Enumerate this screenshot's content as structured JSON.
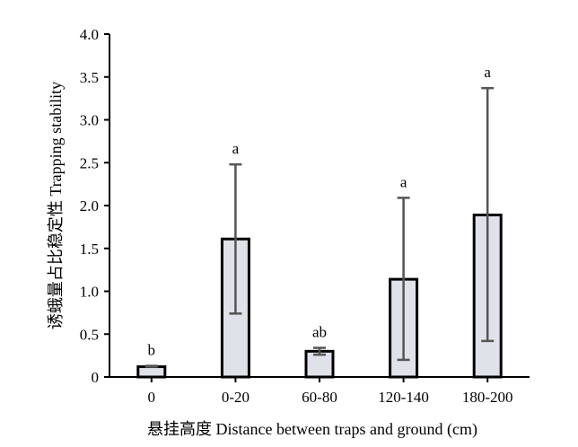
{
  "chart_data": {
    "type": "bar",
    "title": "",
    "xlabel": "悬挂高度 Distance between traps and ground (cm)",
    "ylabel": "诱蛾量占比稳定性 Trapping stability",
    "categories": [
      "0",
      "0-20",
      "60-80",
      "120-140",
      "180-200"
    ],
    "values": [
      0.12,
      1.61,
      0.3,
      1.14,
      1.89
    ],
    "error_upper": [
      0.13,
      2.48,
      0.34,
      2.09,
      3.37
    ],
    "error_lower": [
      0.12,
      0.74,
      0.26,
      0.2,
      0.42
    ],
    "significance": [
      "b",
      "a",
      "ab",
      "a",
      "a"
    ],
    "ylim": [
      0,
      4.0
    ],
    "yticks": [
      "0",
      "0.5",
      "1.0",
      "1.5",
      "2.0",
      "2.5",
      "3.0",
      "3.5",
      "4.0"
    ],
    "grid": false,
    "legend": "none",
    "colors": {
      "bar_fill": "#dfe2e8",
      "bar_stroke": "#000000",
      "error_bar": "#555555",
      "axis": "#000000"
    }
  }
}
